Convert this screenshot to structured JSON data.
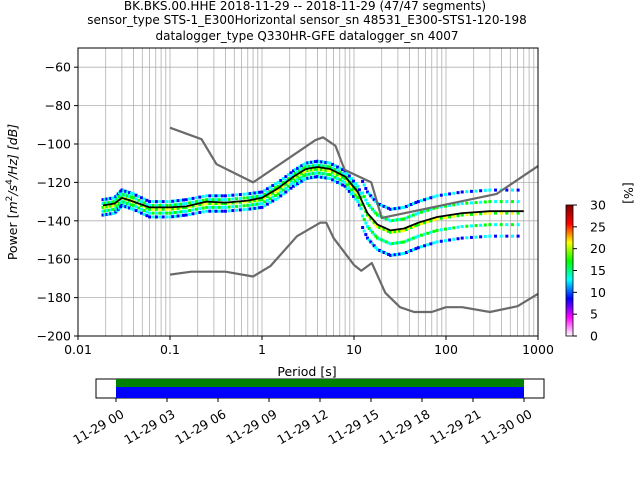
{
  "chart_data": {
    "type": "heatmap",
    "title_lines": [
      "BK.BKS.00.HHE   2018-11-29 -- 2018-11-29  (47/47 segments)",
      "sensor_type STS-1_E300Horizontal sensor_sn 48531_E300-STS1-120-198",
      "datalogger_type Q330HR-GFE datalogger_sn 4007"
    ],
    "xlabel": "Period [s]",
    "ylabel": "Power [m²/s⁴/Hz] [dB]",
    "ylabel_parts": {
      "lead": "Power [",
      "m": "m",
      "exp2": "2",
      "s": "/s",
      "exp4": "4",
      "tail": "/Hz] [dB]"
    },
    "xscale": "log",
    "xlim": [
      0.01,
      1000
    ],
    "ylim": [
      -200,
      -50
    ],
    "x_ticks": [
      {
        "value": 0.01,
        "label": "0.01"
      },
      {
        "value": 0.1,
        "label": "0.1"
      },
      {
        "value": 1,
        "label": "1"
      },
      {
        "value": 10,
        "label": "10"
      },
      {
        "value": 100,
        "label": "100"
      },
      {
        "value": 1000,
        "label": "1000"
      }
    ],
    "y_ticks": [
      {
        "value": -60,
        "label": "−60"
      },
      {
        "value": -80,
        "label": "−80"
      },
      {
        "value": -100,
        "label": "−100"
      },
      {
        "value": -120,
        "label": "−120"
      },
      {
        "value": -140,
        "label": "−140"
      },
      {
        "value": -160,
        "label": "−160"
      },
      {
        "value": -180,
        "label": "−180"
      },
      {
        "value": -200,
        "label": "−200"
      }
    ],
    "grid": true,
    "vertical_grid_periods": [
      0.02,
      0.03,
      0.04,
      0.05,
      0.06,
      0.07,
      0.08,
      0.09,
      0.1,
      0.2,
      0.3,
      0.4,
      0.5,
      0.6,
      0.7,
      0.8,
      0.9,
      1,
      2,
      3,
      4,
      5,
      6,
      7,
      8,
      9,
      10,
      20,
      30,
      40,
      50,
      60,
      70,
      80,
      90,
      100,
      200,
      300,
      400,
      500,
      600,
      700,
      800,
      900
    ],
    "series": [
      {
        "role": "high_noise_model",
        "color": "#6a6a6a",
        "points": [
          [
            0.1,
            -91.5
          ],
          [
            0.22,
            -97.5
          ],
          [
            0.32,
            -110.5
          ],
          [
            0.8,
            -120
          ],
          [
            3.8,
            -98
          ],
          [
            4.6,
            -96.5
          ],
          [
            6.3,
            -101
          ],
          [
            7.9,
            -113.5
          ],
          [
            15.4,
            -120
          ],
          [
            20,
            -138.5
          ],
          [
            354.8,
            -126
          ],
          [
            1000,
            -111.5
          ]
        ]
      },
      {
        "role": "low_noise_model",
        "color": "#6a6a6a",
        "points": [
          [
            0.1,
            -168
          ],
          [
            0.17,
            -166.5
          ],
          [
            0.4,
            -166.5
          ],
          [
            0.8,
            -169
          ],
          [
            1.24,
            -163.5
          ],
          [
            2.4,
            -148
          ],
          [
            4.3,
            -141
          ],
          [
            5,
            -141
          ],
          [
            6,
            -149
          ],
          [
            10,
            -163
          ],
          [
            12,
            -166
          ],
          [
            15.6,
            -162
          ],
          [
            21.9,
            -177.5
          ],
          [
            31.6,
            -185
          ],
          [
            45,
            -187.5
          ],
          [
            70,
            -187.5
          ],
          [
            100,
            -185
          ],
          [
            150,
            -185
          ],
          [
            300,
            -187.5
          ],
          [
            600,
            -184.5
          ],
          [
            1000,
            -178
          ]
        ]
      },
      {
        "role": "mode",
        "color": "#000000",
        "points": [
          [
            0.0187,
            -132
          ],
          [
            0.025,
            -131
          ],
          [
            0.03,
            -128
          ],
          [
            0.04,
            -130
          ],
          [
            0.06,
            -133
          ],
          [
            0.1,
            -133
          ],
          [
            0.15,
            -132.5
          ],
          [
            0.25,
            -130
          ],
          [
            0.4,
            -130.5
          ],
          [
            0.7,
            -129.5
          ],
          [
            1.0,
            -128
          ],
          [
            1.5,
            -123
          ],
          [
            2.2,
            -117
          ],
          [
            3.0,
            -113
          ],
          [
            4.0,
            -112
          ],
          [
            5.5,
            -113
          ],
          [
            8,
            -117
          ],
          [
            11,
            -125
          ],
          [
            14,
            -136
          ],
          [
            18,
            -142
          ],
          [
            25,
            -145
          ],
          [
            35,
            -144
          ],
          [
            50,
            -141
          ],
          [
            80,
            -138
          ],
          [
            150,
            -136
          ],
          [
            300,
            -135
          ],
          [
            700,
            -135
          ]
        ]
      }
    ],
    "ppsd_bands": [
      {
        "x": [
          [
            0.0187,
            -133
          ],
          [
            0.025,
            -132
          ],
          [
            0.03,
            -128
          ],
          [
            0.04,
            -130
          ],
          [
            0.06,
            -134
          ],
          [
            0.1,
            -134
          ],
          [
            0.15,
            -133
          ],
          [
            0.25,
            -131
          ],
          [
            0.4,
            -131
          ],
          [
            0.7,
            -130
          ],
          [
            1.0,
            -129
          ],
          [
            1.5,
            -124
          ],
          [
            2.2,
            -118
          ],
          [
            3.0,
            -114
          ],
          [
            4.0,
            -113
          ],
          [
            5.5,
            -114
          ],
          [
            8,
            -118
          ],
          [
            11,
            -126
          ],
          [
            14,
            -137
          ],
          [
            18,
            -143
          ],
          [
            25,
            -146
          ],
          [
            35,
            -145
          ],
          [
            50,
            -142
          ],
          [
            80,
            -139
          ],
          [
            150,
            -137
          ],
          [
            300,
            -136
          ],
          [
            700,
            -136
          ]
        ],
        "spread_up": 4,
        "spread_down": 4
      }
    ],
    "colorbar": {
      "label": "[%]",
      "range": [
        0,
        30
      ],
      "ticks": [
        0,
        5,
        10,
        15,
        20,
        25,
        30
      ],
      "colors": [
        "#ffffff",
        "#ff00ff",
        "#0000ff",
        "#00ffff",
        "#00ff00",
        "#ffff00",
        "#ff0000",
        "#800000"
      ]
    },
    "timeline": {
      "ticks": [
        "11-29 00",
        "11-29 03",
        "11-29 06",
        "11-29 09",
        "11-29 12",
        "11-29 15",
        "11-29 18",
        "11-29 21",
        "11-30 00"
      ],
      "bars": [
        {
          "color": "#008000",
          "from_hour": 0,
          "to_hour": 24
        },
        {
          "color": "#0000ff",
          "from_hour": 0,
          "to_hour": 24
        }
      ]
    }
  }
}
